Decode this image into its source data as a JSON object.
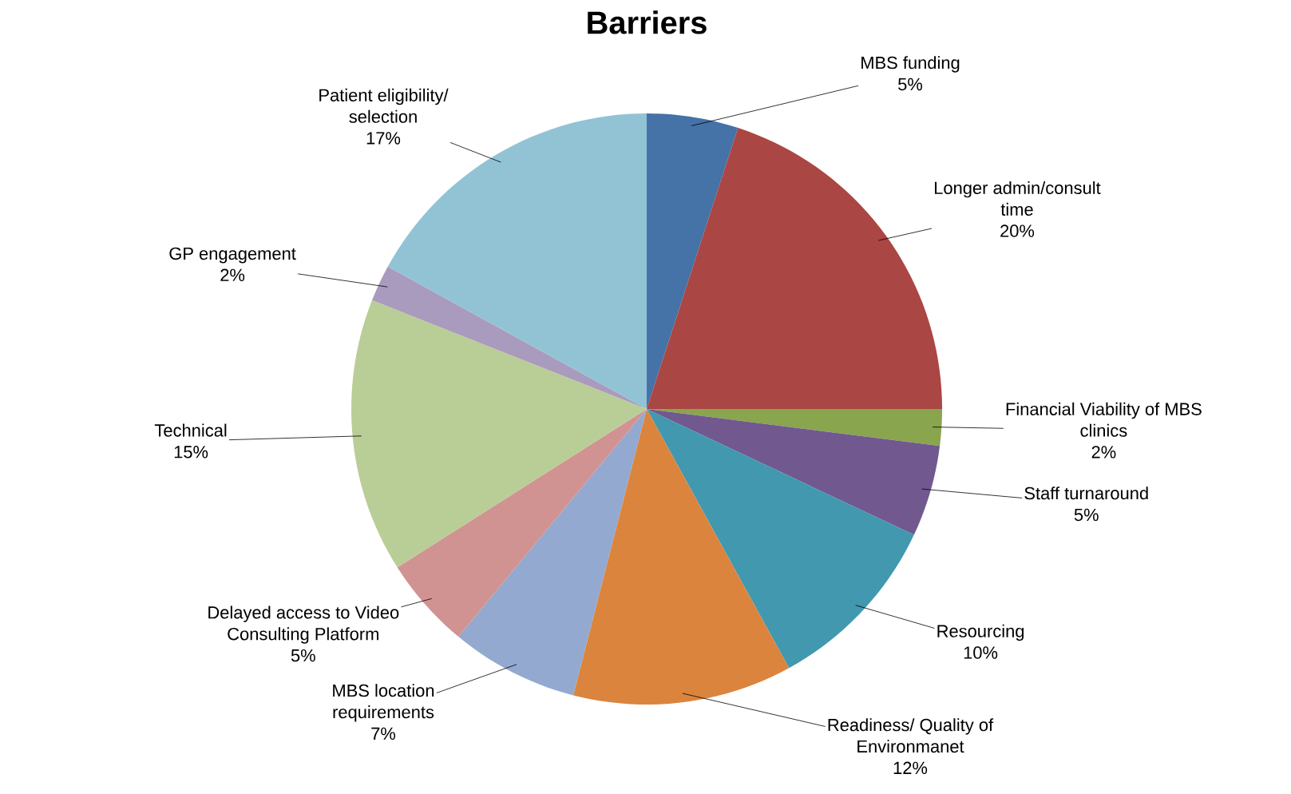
{
  "chart_data": {
    "type": "pie",
    "title": "Barriers",
    "categories": [
      "MBS funding",
      "Longer admin/consult time",
      "Financial Viability of MBS clinics",
      "Staff turnaround",
      "Resourcing",
      "Readiness/ Quality of Environmanet",
      "MBS location requirements",
      "Delayed access to Video Consulting Platform",
      "Technical",
      "GP engagement",
      "Patient eligibility/ selection"
    ],
    "values": [
      5,
      20,
      2,
      5,
      10,
      12,
      7,
      5,
      15,
      2,
      17
    ],
    "value_labels": [
      "5%",
      "20%",
      "2%",
      "5%",
      "10%",
      "12%",
      "7%",
      "5%",
      "15%",
      "2%",
      "17%"
    ],
    "colors": [
      "#4572a7",
      "#aa4643",
      "#89a54e",
      "#71588f",
      "#4198af",
      "#db843d",
      "#93a9cf",
      "#d19392",
      "#b9cd96",
      "#a99bbd",
      "#92c3d4"
    ]
  }
}
